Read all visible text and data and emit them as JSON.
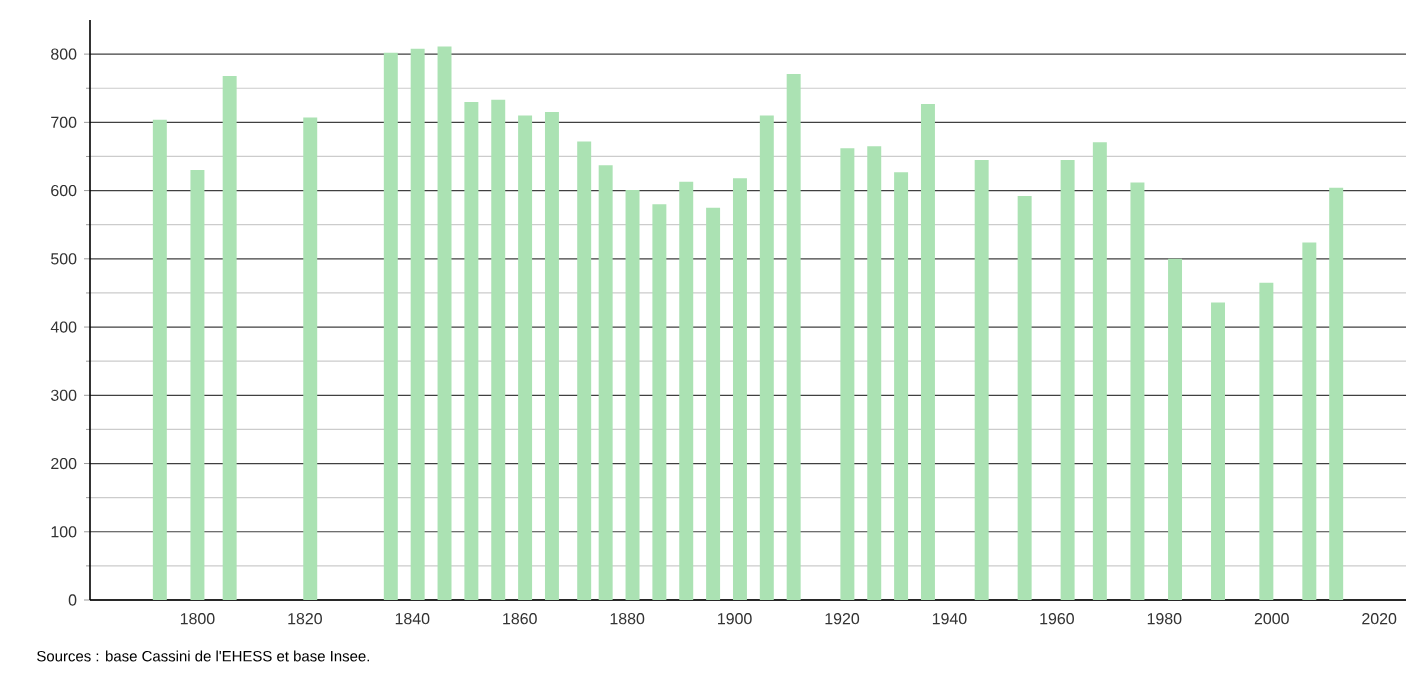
{
  "chart_data": {
    "type": "bar",
    "x": [
      1793,
      1800,
      1806,
      1821,
      1836,
      1841,
      1846,
      1851,
      1856,
      1861,
      1866,
      1872,
      1876,
      1881,
      1886,
      1891,
      1896,
      1901,
      1906,
      1911,
      1921,
      1926,
      1931,
      1936,
      1946,
      1954,
      1962,
      1968,
      1975,
      1982,
      1990,
      1999,
      2007,
      2012
    ],
    "values": [
      704,
      630,
      768,
      707,
      802,
      808,
      811,
      730,
      733,
      710,
      715,
      672,
      637,
      601,
      580,
      613,
      575,
      618,
      710,
      771,
      662,
      665,
      627,
      727,
      645,
      592,
      645,
      671,
      612,
      500,
      436,
      465,
      524,
      604
    ],
    "color": "#abe2b3",
    "xlim": [
      1780,
      2025
    ],
    "xticks": [
      1800,
      1820,
      1840,
      1860,
      1880,
      1900,
      1920,
      1940,
      1960,
      1980,
      2000,
      2020
    ],
    "ylim": [
      0,
      850
    ],
    "yticks": [
      0,
      {
        "value": 50,
        "label": null
      },
      100,
      {
        "value": 150,
        "label": null
      },
      200,
      {
        "value": 250,
        "label": null
      },
      300,
      {
        "value": 350,
        "label": null
      },
      400,
      {
        "value": 450,
        "label": null
      },
      500,
      {
        "value": 550,
        "label": null
      },
      600,
      {
        "value": 650,
        "label": null
      },
      700,
      {
        "value": 750,
        "label": null
      },
      800
    ],
    "grid": "y",
    "annotations": [
      "Sources : base Cassini de l'EHESS et base Insee."
    ]
  }
}
